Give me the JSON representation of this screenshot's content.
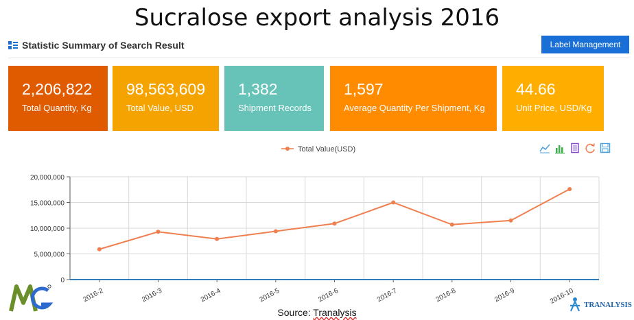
{
  "page": {
    "title": "Sucralose export analysis 2016"
  },
  "header": {
    "summary_title": "Statistic Summary of Search Result",
    "label_button": "Label Management"
  },
  "cards": [
    {
      "value": "2,206,822",
      "label": "Total Quantity, Kg",
      "color": "#e05a00"
    },
    {
      "value": "98,563,609",
      "label": "Total Value, USD",
      "color": "#f5a300"
    },
    {
      "value": "1,382",
      "label": "Shipment Records",
      "color": "#67c3b7"
    },
    {
      "value": "1,597",
      "label": "Average Quantity Per Shipment, Kg",
      "color": "#ff8c00"
    },
    {
      "value": "44.66",
      "label": "Unit Price, USD/Kg",
      "color": "#ffae00"
    }
  ],
  "toolbar": [
    "line-chart-icon",
    "bar-chart-icon",
    "data-view-icon",
    "refresh-icon",
    "save-icon"
  ],
  "source": {
    "prefix": "Source: ",
    "name": "Tranalysis"
  },
  "logos": {
    "right_brand": "TRANALYSIS"
  },
  "colors": {
    "line": "#f07f4f",
    "axis": "#2f7ab8",
    "grid": "#d9d9d9"
  },
  "chart_data": {
    "type": "line",
    "categories": [
      "2016-2",
      "2016-3",
      "2016-4",
      "2016-5",
      "2016-6",
      "2016-7",
      "2016-8",
      "2016-9",
      "2016-10"
    ],
    "series": [
      {
        "name": "Total Value(USD)",
        "values": [
          5900000,
          9300000,
          7900000,
          9400000,
          10900000,
          15000000,
          10700000,
          11500000,
          17600000
        ]
      }
    ],
    "ylim": [
      0,
      20000000
    ],
    "yticks": [
      "0",
      "5,000,000",
      "10,000,000",
      "15,000,000",
      "20,000,000"
    ],
    "grid": true,
    "legend": "top-center"
  }
}
